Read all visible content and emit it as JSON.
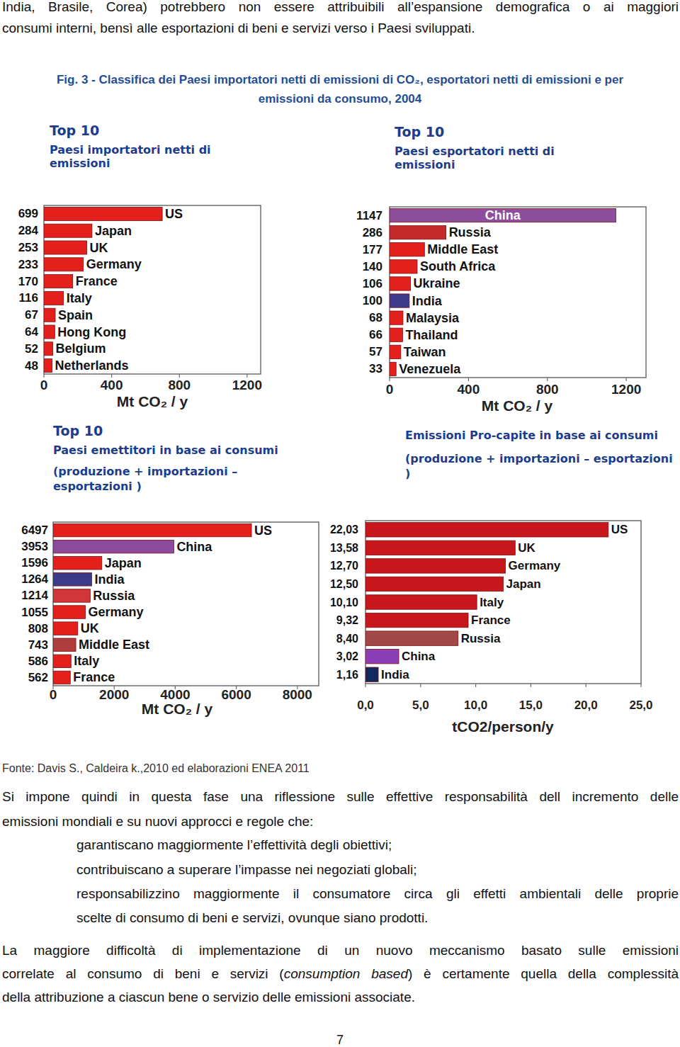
{
  "page": {
    "intro": [
      "India, Brasile, Corea) potrebbero non essere attribuibili all’espansione demografica o ai maggiori",
      "consumi interni, bensì alle esportazioni di beni e servizi verso i Paesi sviluppati."
    ],
    "caption": [
      "Fig. 3 - Classifica dei Paesi importatori netti di emissioni di CO₂, esportatori netti di emissioni e per",
      "emissioni da consumo, 2004"
    ],
    "source": "Fonte: Davis S., Caldeira k.,2010 ed elaborazioni ENEA 2011",
    "paragraph1": [
      "Si impone quindi in questa fase una riflessione sulle effettive responsabilità dell incremento delle",
      "emissioni mondiali e su nuovi approcci e regole che:"
    ],
    "bullets": [
      [
        "garantiscano maggiormente l’effettività degli obiettivi;"
      ],
      [
        "contribuiscano a superare l’impasse nei negoziati globali;"
      ],
      [
        "responsabilizzino maggiormente il consumatore circa gli effetti ambientali delle proprie",
        "scelte di consumo di beni e servizi, ovunque siano prodotti."
      ]
    ],
    "paragraph2": [
      [
        {
          "text": "La maggiore difficoltà di implementazione di un nuovo meccanismo basato sulle emissioni",
          "italic": false
        }
      ],
      [
        {
          "text": "correlate al consumo di beni e servizi (",
          "italic": false
        },
        {
          "text": "consumption based",
          "italic": true
        },
        {
          "text": ") è certamente quella della complessità",
          "italic": false
        }
      ],
      [
        {
          "text": "della attribuzione a ciascun bene o servizio delle emissioni associate.",
          "italic": false
        }
      ]
    ],
    "page_number": 7
  },
  "chart_data": [
    {
      "type": "bar",
      "orientation": "horizontal",
      "title": "Top 10",
      "subtitle": "Paesi importatori netti di emissioni",
      "xlabel": "Mt CO₂ / y",
      "categories": [
        "US",
        "Japan",
        "UK",
        "Germany",
        "France",
        "Italy",
        "Spain",
        "Hong Kong",
        "Belgium",
        "Netherlands"
      ],
      "values": [
        699,
        284,
        253,
        233,
        170,
        116,
        67,
        64,
        52,
        48
      ],
      "colors": [
        "#e3201b",
        "#e3201b",
        "#e3201b",
        "#e3201b",
        "#e3201b",
        "#e3201b",
        "#e3201b",
        "#e3201b",
        "#e3201b",
        "#e3201b"
      ],
      "xlim": [
        0,
        1280
      ],
      "xticks": [
        0,
        400,
        800,
        1200
      ],
      "data_labels": true
    },
    {
      "type": "bar",
      "orientation": "horizontal",
      "title": "Top 10",
      "subtitle": "Paesi esportatori netti di emissioni",
      "xlabel": "Mt CO₂ / y",
      "categories": [
        "China",
        "Russia",
        "Middle East",
        "South Africa",
        "Ukraine",
        "India",
        "Malaysia",
        "Thailand",
        "Taiwan",
        "Venezuela"
      ],
      "values": [
        1147,
        286,
        177,
        140,
        106,
        100,
        68,
        66,
        57,
        33
      ],
      "colors": [
        "#8b4f9e",
        "#c42a2a",
        "#e3201b",
        "#e3201b",
        "#e3201b",
        "#3d3a8a",
        "#e3201b",
        "#e3201b",
        "#e3201b",
        "#e3201b"
      ],
      "xlim": [
        0,
        1300
      ],
      "xticks": [
        0,
        400,
        800,
        1200
      ],
      "data_labels": true
    },
    {
      "type": "bar",
      "orientation": "horizontal",
      "title": "Top 10",
      "subtitle": "Paesi emettitori in base ai consumi",
      "annotation": "(produzione + importazioni – esportazioni )",
      "xlabel": "Mt CO₂ / y",
      "categories": [
        "US",
        "China",
        "Japan",
        "India",
        "Russia",
        "Germany",
        "UK",
        "Middle East",
        "Italy",
        "France"
      ],
      "values": [
        6497,
        3953,
        1596,
        1264,
        1214,
        1055,
        808,
        743,
        586,
        562
      ],
      "colors": [
        "#e3201b",
        "#8b4a9c",
        "#e3201b",
        "#3d3a8a",
        "#d0363a",
        "#e3201b",
        "#e3201b",
        "#b03d3d",
        "#e3201b",
        "#e3201b"
      ],
      "xlim": [
        0,
        8700
      ],
      "xticks": [
        0,
        2000,
        4000,
        6000,
        8000
      ],
      "data_labels": true
    },
    {
      "type": "bar",
      "orientation": "horizontal",
      "title": "Emissioni Pro-capite in base ai consumi",
      "annotation": "(produzione + importazioni – esportazioni )",
      "xlabel": "tCO2/person/y",
      "categories": [
        "US",
        "UK",
        "Germany",
        "Japan",
        "Italy",
        "France",
        "Russia",
        "China",
        "India"
      ],
      "values": [
        22.03,
        13.58,
        12.7,
        12.5,
        10.1,
        9.32,
        8.4,
        3.02,
        1.16
      ],
      "value_labels": [
        "22,03",
        "13,58",
        "12,70",
        "12,50",
        "10,10",
        "9,32",
        "8,40",
        "3,02",
        "1,16"
      ],
      "colors": [
        "#c8161d",
        "#c8161d",
        "#c8161d",
        "#c8161d",
        "#c8161d",
        "#c8161d",
        "#a34848",
        "#8b3fb4",
        "#13285e"
      ],
      "xlim": [
        0,
        25
      ],
      "xticks": [
        {
          "value": 0,
          "label": "0,0"
        },
        {
          "value": 5,
          "label": "5,0"
        },
        {
          "value": 10,
          "label": "10,0"
        },
        {
          "value": 15,
          "label": "15,0"
        },
        {
          "value": 20,
          "label": "20,0"
        },
        {
          "value": 25,
          "label": "25,0"
        }
      ],
      "data_labels": true
    }
  ]
}
